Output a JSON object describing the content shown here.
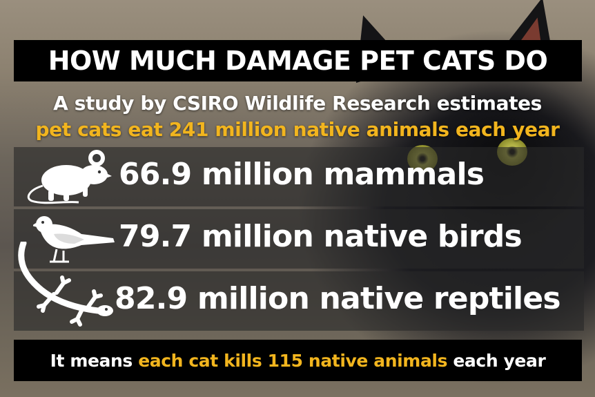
{
  "title": "HOW MUCH DAMAGE PET CATS DO",
  "subtitle_line1": "A study by CSIRO Wildlife Research estimates",
  "subtitle_line2": "pet cats eat 241 million native animals each year",
  "stats": [
    {
      "label": "66.9 million mammals",
      "icon": "mouse-icon"
    },
    {
      "label": "79.7  million native birds",
      "icon": "bird-icon"
    },
    {
      "label": "82.9 million native reptiles",
      "icon": "lizard-icon"
    }
  ],
  "footer": {
    "part1": "It means ",
    "part2": "each cat kills 115 native animals",
    "part3": " each year"
  },
  "colors": {
    "accent": "#f2b51e",
    "bar": "#000000",
    "text": "#ffffff"
  }
}
